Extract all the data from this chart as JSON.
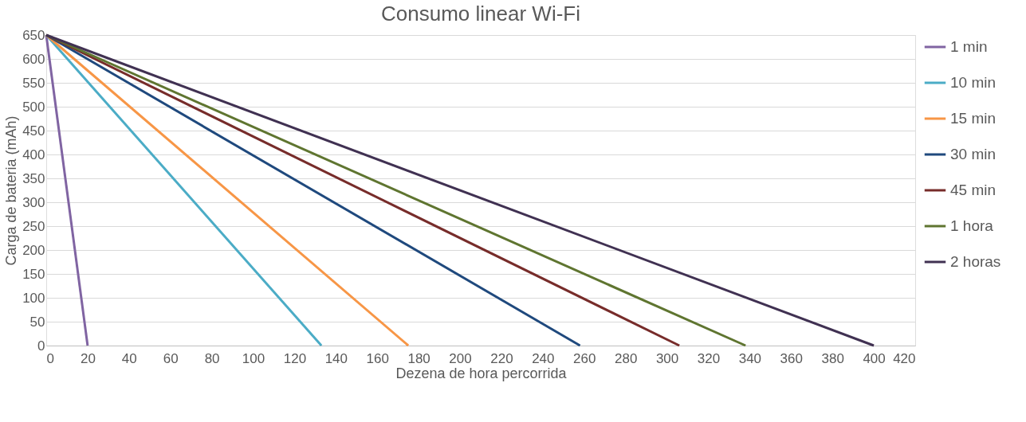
{
  "chart_data": {
    "type": "line",
    "title": "Consumo linear Wi-Fi",
    "xlabel": "Dezena de hora percorrida",
    "ylabel": "Carga de bateria (mAh)",
    "xlim": [
      0,
      420
    ],
    "xticks": [
      0,
      20,
      40,
      60,
      80,
      100,
      120,
      140,
      160,
      180,
      200,
      220,
      240,
      260,
      280,
      300,
      320,
      340,
      360,
      380,
      400,
      420
    ],
    "ylim": [
      0,
      650
    ],
    "yticks": [
      0,
      50,
      100,
      150,
      200,
      250,
      300,
      350,
      400,
      450,
      500,
      550,
      600,
      650
    ],
    "grid": "y",
    "legend": "right",
    "marker": "none",
    "line_style": "solid",
    "series": [
      {
        "name": "1 min",
        "color": "#8064a2",
        "x": [
          0,
          20
        ],
        "values": [
          650,
          0
        ]
      },
      {
        "name": "10 min",
        "color": "#4bacc6",
        "x": [
          0,
          133
        ],
        "values": [
          650,
          0
        ]
      },
      {
        "name": "15 min",
        "color": "#f79646",
        "x": [
          0,
          175
        ],
        "values": [
          650,
          0
        ]
      },
      {
        "name": "30 min",
        "color": "#1f497d",
        "x": [
          0,
          258
        ],
        "values": [
          650,
          0
        ]
      },
      {
        "name": "45 min",
        "color": "#772c2a",
        "x": [
          0,
          306
        ],
        "values": [
          650,
          0
        ]
      },
      {
        "name": "1 hora",
        "color": "#5f7530",
        "x": [
          0,
          338
        ],
        "values": [
          650,
          0
        ]
      },
      {
        "name": "2 horas",
        "color": "#403152",
        "x": [
          0,
          400
        ],
        "values": [
          650,
          0
        ]
      }
    ]
  }
}
